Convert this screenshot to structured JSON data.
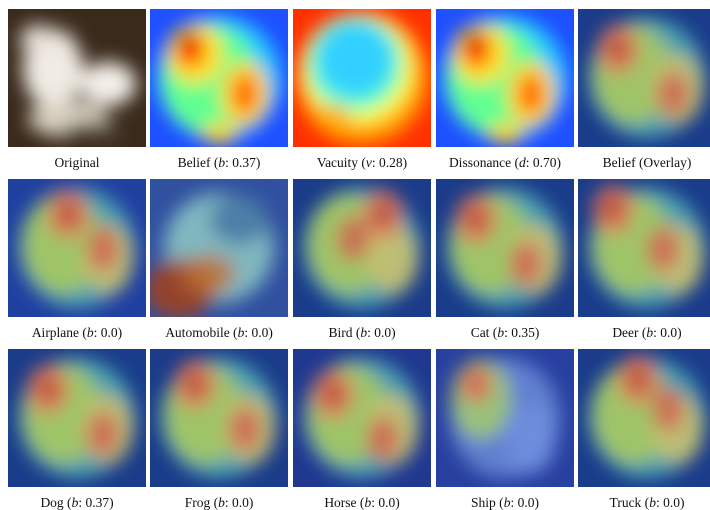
{
  "figure": {
    "panels": [
      {
        "caption": {
          "text": "Original"
        }
      },
      {
        "caption": {
          "prefix": "Belief (",
          "symbol": "b",
          "suffix": ": 0.37)"
        }
      },
      {
        "caption": {
          "prefix": "Vacuity (",
          "symbol": "v",
          "suffix": ": 0.28)"
        }
      },
      {
        "caption": {
          "prefix": "Dissonance (",
          "symbol": "d",
          "suffix": ": 0.70)"
        }
      },
      {
        "caption": {
          "text": "Belief (Overlay)"
        }
      },
      {
        "caption": {
          "prefix": "Airplane (",
          "symbol": "b",
          "suffix": ": 0.0)"
        }
      },
      {
        "caption": {
          "prefix": "Automobile (",
          "symbol": "b",
          "suffix": ": 0.0)"
        }
      },
      {
        "caption": {
          "prefix": "Bird (",
          "symbol": "b",
          "suffix": ": 0.0)"
        }
      },
      {
        "caption": {
          "prefix": "Cat (",
          "symbol": "b",
          "suffix": ": 0.35)"
        }
      },
      {
        "caption": {
          "prefix": "Deer (",
          "symbol": "b",
          "suffix": ": 0.0)"
        }
      },
      {
        "caption": {
          "prefix": "Dog (",
          "symbol": "b",
          "suffix": ": 0.37)"
        }
      },
      {
        "caption": {
          "prefix": "Frog (",
          "symbol": "b",
          "suffix": ": 0.0)"
        }
      },
      {
        "caption": {
          "prefix": "Horse (",
          "symbol": "b",
          "suffix": ": 0.0)"
        }
      },
      {
        "caption": {
          "prefix": "Ship (",
          "symbol": "b",
          "suffix": ": 0.0)"
        }
      },
      {
        "caption": {
          "prefix": "Truck (",
          "symbol": "b",
          "suffix": ": 0.0)"
        }
      }
    ]
  }
}
